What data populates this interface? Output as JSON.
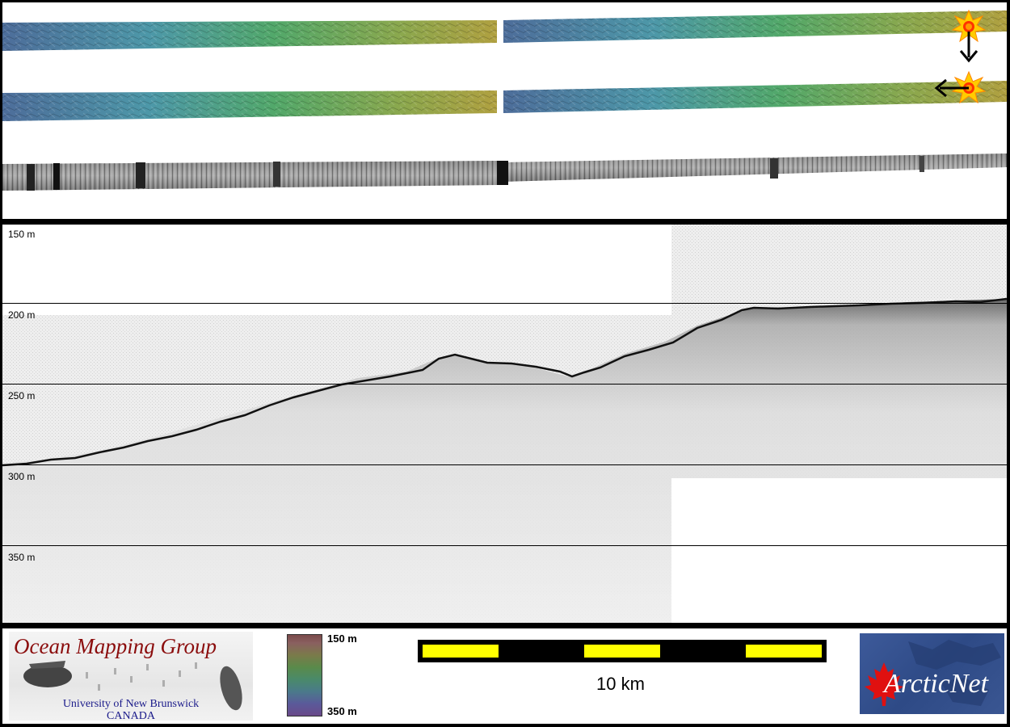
{
  "profile": {
    "depth_labels": [
      "150 m",
      "200 m",
      "250 m",
      "300 m",
      "350 m"
    ]
  },
  "legend": {
    "organization_title": "Ocean Mapping Group",
    "organization_line1": "University of New Brunswick",
    "organization_line2": "CANADA",
    "colorbar_top": "150 m",
    "colorbar_bottom": "350 m",
    "scale_label": "10 km",
    "partner_logo": "ArcticNet"
  },
  "icons": {
    "sun_icon": "sun-illumination-icon",
    "arrow_down": "arrow-down-icon",
    "arrow_left": "arrow-left-icon"
  },
  "colors": {
    "scale_yellow": "#ffff00",
    "logo_red": "#8b0d0d",
    "logo_blue": "#1a1a8a"
  }
}
